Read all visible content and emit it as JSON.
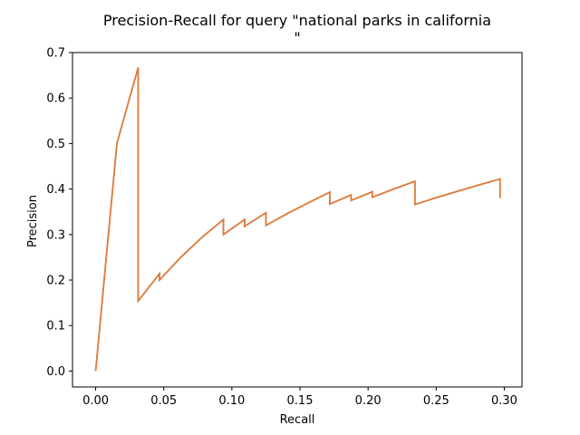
{
  "chart_data": {
    "type": "line",
    "title_lines": [
      "Precision-Recall for query \"national parks in california",
      "\""
    ],
    "xlabel": "Recall",
    "ylabel": "Precision",
    "xlim": [
      -0.017,
      0.313
    ],
    "ylim": [
      -0.035,
      0.7
    ],
    "xticks": [
      0.0,
      0.05,
      0.1,
      0.15,
      0.2,
      0.25,
      0.3
    ],
    "xtick_labels": [
      "0.00",
      "0.05",
      "0.10",
      "0.15",
      "0.20",
      "0.25",
      "0.30"
    ],
    "yticks": [
      0.0,
      0.1,
      0.2,
      0.3,
      0.4,
      0.5,
      0.6,
      0.7
    ],
    "ytick_labels": [
      "0.0",
      "0.1",
      "0.2",
      "0.3",
      "0.4",
      "0.5",
      "0.6",
      "0.7"
    ],
    "grid": false,
    "legend": "none",
    "series": [
      {
        "color": "#e07b39",
        "underlay_color": "#3a78b0",
        "x": [
          0.0,
          0.0156,
          0.0312,
          0.0312,
          0.0469,
          0.0469,
          0.0625,
          0.0781,
          0.0938,
          0.0938,
          0.1094,
          0.1094,
          0.125,
          0.125,
          0.1406,
          0.1563,
          0.1719,
          0.1719,
          0.1875,
          0.1875,
          0.2031,
          0.2031,
          0.2188,
          0.2344,
          0.2344,
          0.25,
          0.2656,
          0.2813,
          0.2969,
          0.2969
        ],
        "y": [
          0.0,
          0.5,
          0.667,
          0.154,
          0.214,
          0.2,
          0.25,
          0.294,
          0.333,
          0.3,
          0.333,
          0.318,
          0.348,
          0.32,
          0.346,
          0.37,
          0.393,
          0.367,
          0.387,
          0.375,
          0.394,
          0.382,
          0.4,
          0.417,
          0.366,
          0.381,
          0.395,
          0.409,
          0.422,
          0.38
        ]
      }
    ]
  }
}
